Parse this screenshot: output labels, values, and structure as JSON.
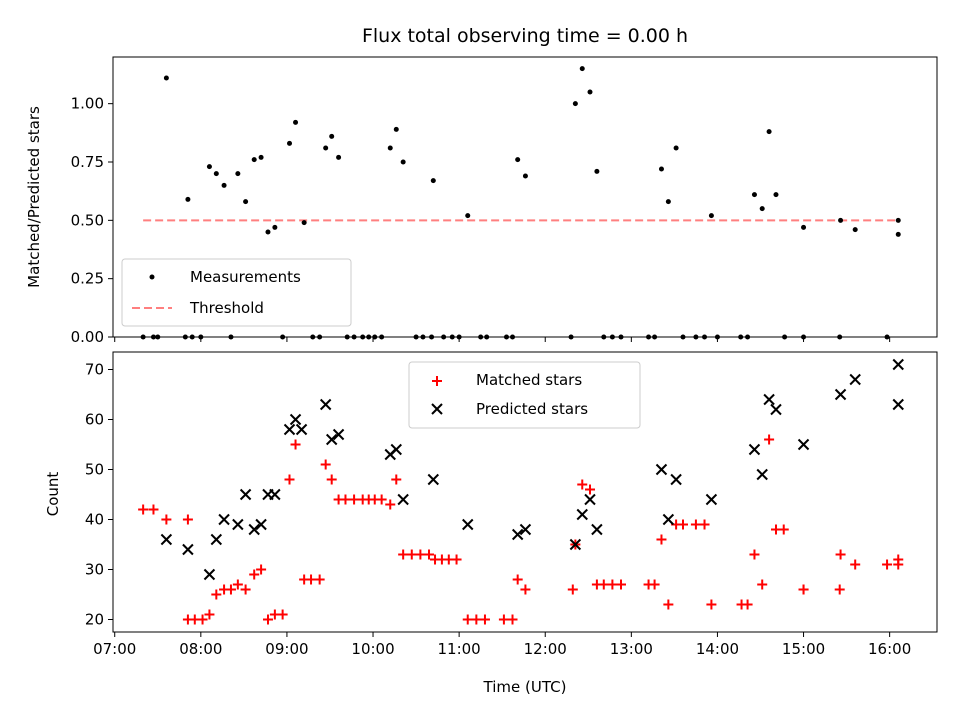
{
  "chart_data": [
    {
      "type": "scatter",
      "title": "Flux total observing time = 0.00 h",
      "xlabel": "",
      "ylabel": "Matched/Predicted stars",
      "xlim": [
        6.98,
        16.55
      ],
      "ylim": [
        0.0,
        1.2
      ],
      "yticks": [
        0.0,
        0.25,
        0.5,
        0.75,
        1.0
      ],
      "ytick_labels": [
        "0.00",
        "0.25",
        "0.50",
        "0.75",
        "1.00"
      ],
      "legend": {
        "position": "lower-left",
        "entries": [
          "Measurements",
          "Threshold"
        ]
      },
      "threshold": {
        "name": "Threshold",
        "value": 0.5,
        "x": [
          7.33,
          16.1
        ],
        "color": "#ff7f7f"
      },
      "series": [
        {
          "name": "Measurements",
          "color": "#000000",
          "points": [
            [
              7.33,
              0
            ],
            [
              7.45,
              0
            ],
            [
              7.5,
              0
            ],
            [
              7.6,
              1.11
            ],
            [
              7.82,
              0
            ],
            [
              7.85,
              0.59
            ],
            [
              7.9,
              0
            ],
            [
              8.0,
              0
            ],
            [
              8.1,
              0.73
            ],
            [
              8.18,
              0.7
            ],
            [
              8.27,
              0.65
            ],
            [
              8.35,
              0
            ],
            [
              8.43,
              0.7
            ],
            [
              8.52,
              0.58
            ],
            [
              8.62,
              0.76
            ],
            [
              8.7,
              0.77
            ],
            [
              8.78,
              0.45
            ],
            [
              8.86,
              0.47
            ],
            [
              8.95,
              0
            ],
            [
              9.03,
              0.83
            ],
            [
              9.1,
              0.92
            ],
            [
              9.2,
              0.49
            ],
            [
              9.3,
              0
            ],
            [
              9.38,
              0
            ],
            [
              9.45,
              0.81
            ],
            [
              9.52,
              0.86
            ],
            [
              9.6,
              0.77
            ],
            [
              9.7,
              0
            ],
            [
              9.78,
              0
            ],
            [
              9.88,
              0
            ],
            [
              9.95,
              0
            ],
            [
              10.02,
              0
            ],
            [
              10.1,
              0
            ],
            [
              10.2,
              0.81
            ],
            [
              10.27,
              0.89
            ],
            [
              10.35,
              0.75
            ],
            [
              10.5,
              0
            ],
            [
              10.58,
              0
            ],
            [
              10.68,
              0
            ],
            [
              10.7,
              0.67
            ],
            [
              10.82,
              0
            ],
            [
              10.92,
              0
            ],
            [
              11.0,
              0
            ],
            [
              11.1,
              0.52
            ],
            [
              11.25,
              0
            ],
            [
              11.32,
              0
            ],
            [
              11.55,
              0
            ],
            [
              11.62,
              0
            ],
            [
              11.68,
              0.76
            ],
            [
              11.77,
              0.69
            ],
            [
              12.3,
              0
            ],
            [
              12.35,
              1.0
            ],
            [
              12.43,
              1.15
            ],
            [
              12.52,
              1.05
            ],
            [
              12.6,
              0.71
            ],
            [
              12.68,
              0
            ],
            [
              12.78,
              0
            ],
            [
              12.88,
              0
            ],
            [
              13.2,
              0
            ],
            [
              13.27,
              0
            ],
            [
              13.35,
              0.72
            ],
            [
              13.43,
              0.58
            ],
            [
              13.52,
              0.81
            ],
            [
              13.6,
              0
            ],
            [
              13.75,
              0
            ],
            [
              13.85,
              0
            ],
            [
              13.93,
              0.52
            ],
            [
              14.0,
              0
            ],
            [
              14.27,
              0
            ],
            [
              14.35,
              0
            ],
            [
              14.43,
              0.61
            ],
            [
              14.52,
              0.55
            ],
            [
              14.6,
              0.88
            ],
            [
              14.68,
              0.61
            ],
            [
              14.78,
              0
            ],
            [
              15.0,
              0.47
            ],
            [
              15.0,
              0
            ],
            [
              15.42,
              0
            ],
            [
              15.43,
              0.5
            ],
            [
              15.6,
              0.46
            ],
            [
              15.97,
              0
            ],
            [
              16.1,
              0.5
            ],
            [
              16.1,
              0.44
            ]
          ]
        }
      ]
    },
    {
      "type": "scatter",
      "title": "",
      "xlabel": "Time (UTC)",
      "ylabel": "Count",
      "xlim": [
        6.98,
        16.55
      ],
      "ylim": [
        17.5,
        73.5
      ],
      "xticks": [
        7,
        8,
        9,
        10,
        11,
        12,
        13,
        14,
        15,
        16
      ],
      "xtick_labels": [
        "07:00",
        "08:00",
        "09:00",
        "10:00",
        "11:00",
        "12:00",
        "13:00",
        "14:00",
        "15:00",
        "16:00"
      ],
      "yticks": [
        20,
        30,
        40,
        50,
        60,
        70
      ],
      "ytick_labels": [
        "20",
        "30",
        "40",
        "50",
        "60",
        "70"
      ],
      "legend": {
        "position": "upper-center",
        "entries": [
          "Matched stars",
          "Predicted stars"
        ]
      },
      "series": [
        {
          "name": "Matched stars",
          "marker": "plus",
          "color": "#ff0000",
          "points": [
            [
              7.33,
              42
            ],
            [
              7.45,
              42
            ],
            [
              7.6,
              40
            ],
            [
              7.85,
              40
            ],
            [
              7.85,
              20
            ],
            [
              7.93,
              20
            ],
            [
              8.02,
              20
            ],
            [
              8.1,
              21
            ],
            [
              8.18,
              25
            ],
            [
              8.27,
              26
            ],
            [
              8.35,
              26
            ],
            [
              8.43,
              27
            ],
            [
              8.52,
              26
            ],
            [
              8.62,
              29
            ],
            [
              8.7,
              30
            ],
            [
              8.78,
              20
            ],
            [
              8.86,
              21
            ],
            [
              8.95,
              21
            ],
            [
              9.03,
              48
            ],
            [
              9.1,
              55
            ],
            [
              9.2,
              28
            ],
            [
              9.28,
              28
            ],
            [
              9.38,
              28
            ],
            [
              9.45,
              51
            ],
            [
              9.52,
              48
            ],
            [
              9.6,
              44
            ],
            [
              9.68,
              44
            ],
            [
              9.78,
              44
            ],
            [
              9.88,
              44
            ],
            [
              9.95,
              44
            ],
            [
              10.02,
              44
            ],
            [
              10.1,
              44
            ],
            [
              10.2,
              43
            ],
            [
              10.27,
              48
            ],
            [
              10.35,
              33
            ],
            [
              10.45,
              33
            ],
            [
              10.55,
              33
            ],
            [
              10.65,
              33
            ],
            [
              10.72,
              32
            ],
            [
              10.8,
              32
            ],
            [
              10.88,
              32
            ],
            [
              10.97,
              32
            ],
            [
              11.1,
              20
            ],
            [
              11.2,
              20
            ],
            [
              11.3,
              20
            ],
            [
              11.52,
              20
            ],
            [
              11.62,
              20
            ],
            [
              11.68,
              28
            ],
            [
              11.77,
              26
            ],
            [
              12.32,
              26
            ],
            [
              12.35,
              35
            ],
            [
              12.43,
              47
            ],
            [
              12.52,
              46
            ],
            [
              12.6,
              27
            ],
            [
              12.68,
              27
            ],
            [
              12.78,
              27
            ],
            [
              12.88,
              27
            ],
            [
              13.2,
              27
            ],
            [
              13.27,
              27
            ],
            [
              13.35,
              36
            ],
            [
              13.43,
              23
            ],
            [
              13.52,
              39
            ],
            [
              13.6,
              39
            ],
            [
              13.75,
              39
            ],
            [
              13.85,
              39
            ],
            [
              13.93,
              23
            ],
            [
              14.28,
              23
            ],
            [
              14.35,
              23
            ],
            [
              14.43,
              33
            ],
            [
              14.52,
              27
            ],
            [
              14.6,
              56
            ],
            [
              14.68,
              38
            ],
            [
              14.77,
              38
            ],
            [
              15.0,
              26
            ],
            [
              15.0,
              26
            ],
            [
              15.42,
              26
            ],
            [
              15.43,
              33
            ],
            [
              15.6,
              31
            ],
            [
              15.97,
              31
            ],
            [
              16.1,
              32
            ],
            [
              16.1,
              31
            ]
          ]
        },
        {
          "name": "Predicted stars",
          "marker": "x",
          "color": "#000000",
          "points": [
            [
              7.6,
              36
            ],
            [
              7.85,
              34
            ],
            [
              8.1,
              29
            ],
            [
              8.18,
              36
            ],
            [
              8.27,
              40
            ],
            [
              8.43,
              39
            ],
            [
              8.52,
              45
            ],
            [
              8.62,
              38
            ],
            [
              8.7,
              39
            ],
            [
              8.78,
              45
            ],
            [
              8.86,
              45
            ],
            [
              9.03,
              58
            ],
            [
              9.1,
              60
            ],
            [
              9.17,
              58
            ],
            [
              9.45,
              63
            ],
            [
              9.52,
              56
            ],
            [
              9.6,
              57
            ],
            [
              10.2,
              53
            ],
            [
              10.27,
              54
            ],
            [
              10.35,
              44
            ],
            [
              10.7,
              48
            ],
            [
              11.1,
              39
            ],
            [
              11.68,
              37
            ],
            [
              11.77,
              38
            ],
            [
              12.35,
              35
            ],
            [
              12.43,
              41
            ],
            [
              12.52,
              44
            ],
            [
              12.6,
              38
            ],
            [
              13.35,
              50
            ],
            [
              13.43,
              40
            ],
            [
              13.52,
              48
            ],
            [
              13.93,
              44
            ],
            [
              14.43,
              54
            ],
            [
              14.52,
              49
            ],
            [
              14.6,
              64
            ],
            [
              14.68,
              62
            ],
            [
              15.0,
              55
            ],
            [
              15.43,
              65
            ],
            [
              15.6,
              68
            ],
            [
              16.1,
              71
            ],
            [
              16.1,
              63
            ]
          ]
        }
      ]
    }
  ]
}
